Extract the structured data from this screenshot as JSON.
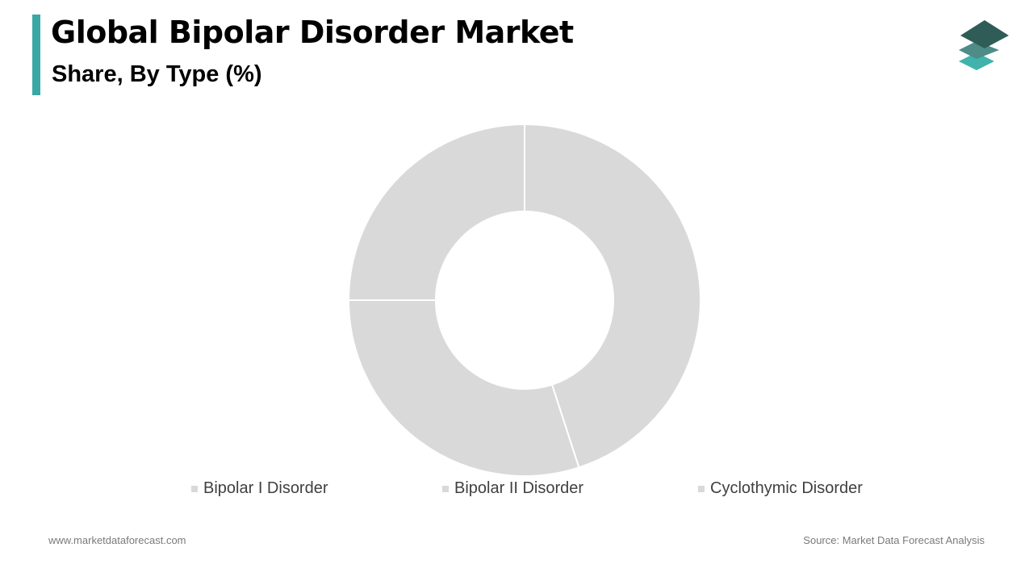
{
  "header": {
    "title": "Global Bipolar Disorder Market",
    "subtitle": "Share, By Type (%)"
  },
  "logo": {
    "icon": "stacked-layers-logo",
    "colors": [
      "#2f5c57",
      "#4e8d87",
      "#3fb3ac"
    ]
  },
  "chart_data": {
    "type": "pie",
    "style": "donut",
    "title": "",
    "categories": [
      "Bipolar I Disorder",
      "Bipolar II Disorder",
      "Cyclothymic Disorder"
    ],
    "values": [
      45,
      30,
      25
    ],
    "unit": "%",
    "colors": [
      "#d9d9d9",
      "#d9d9d9",
      "#d9d9d9"
    ],
    "legend_position": "bottom",
    "data_labels": false
  },
  "footer": {
    "website": "www.marketdataforecast.com",
    "source": "Source: Market Data Forecast Analysis"
  }
}
